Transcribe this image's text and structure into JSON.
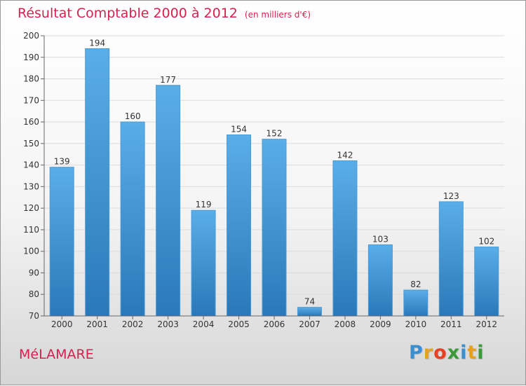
{
  "header": {
    "title": "Résultat Comptable 2000 à 2012",
    "subtitle": "(en milliers d'€)"
  },
  "footer": {
    "town": "MéLAMARE"
  },
  "logo": {
    "letters": [
      "P",
      "r",
      "o",
      "x",
      "i",
      "t",
      "i"
    ],
    "colors": [
      "#3a8fd0",
      "#e8a020",
      "#e84020",
      "#3a9a3a",
      "#3a8fd0",
      "#e8a020",
      "#3a9a3a"
    ]
  },
  "colors": {
    "bar_light": "#5aaee8",
    "bar_dark": "#2a78b8",
    "title": "#d6204f"
  },
  "chart_data": {
    "type": "bar",
    "categories": [
      "2000",
      "2001",
      "2002",
      "2003",
      "2004",
      "2005",
      "2006",
      "2007",
      "2008",
      "2009",
      "2010",
      "2011",
      "2012"
    ],
    "values": [
      139,
      194,
      160,
      177,
      119,
      154,
      152,
      74,
      142,
      103,
      82,
      123,
      102
    ],
    "ylim": [
      70,
      200
    ],
    "yticks": [
      70,
      80,
      90,
      100,
      110,
      120,
      130,
      140,
      150,
      160,
      170,
      180,
      190,
      200
    ],
    "grid": true,
    "legend": "none"
  }
}
